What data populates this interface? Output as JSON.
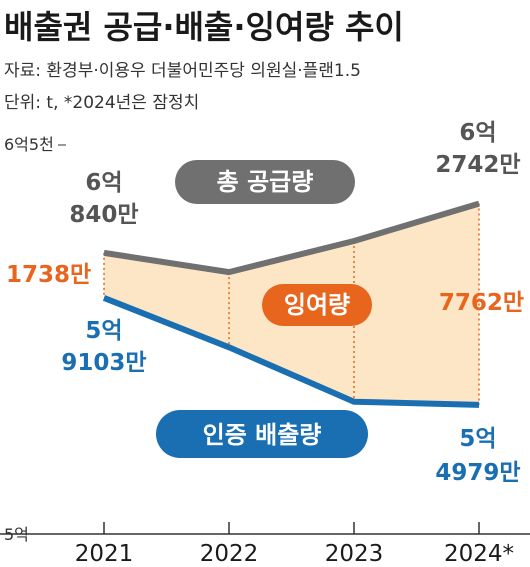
{
  "header": {
    "title": "배출권 공급·배출·잉여량 추이",
    "source": "자료: 환경부·이용우 더불어민주당 의원실·플랜1.5",
    "unit": "단위: t, *2024년은 잠정치"
  },
  "colors": {
    "supply": "#707070",
    "emission": "#1a6fb3",
    "surplus_fill": "#fde6c6",
    "surplus_text": "#e8651d",
    "axis": "#333333"
  },
  "chart_data": {
    "type": "area",
    "x": [
      "2021",
      "2022",
      "2023",
      "2024*"
    ],
    "ylim": [
      500000000,
      650000000
    ],
    "yticks": [
      {
        "value": 500000000,
        "label": "5억"
      },
      {
        "value": 650000000,
        "label": "6억5천"
      }
    ],
    "series": [
      {
        "name": "총 공급량",
        "values": [
          608400000,
          601000000,
          613000000,
          627420000
        ]
      },
      {
        "name": "인증 배출량",
        "values": [
          591030000,
          572000000,
          551000000,
          549790000
        ]
      },
      {
        "name": "잉여량",
        "values": [
          17380000,
          29000000,
          62000000,
          77620000
        ]
      }
    ],
    "annotations": {
      "supply_start": [
        "6억",
        "840만"
      ],
      "supply_end": [
        "6억",
        "2742만"
      ],
      "emission_start": [
        "5억",
        "9103만"
      ],
      "emission_end": [
        "5억",
        "4979만"
      ],
      "surplus_start": "1738만",
      "surplus_end": "7762만"
    },
    "grid": false,
    "legend": "inline"
  }
}
